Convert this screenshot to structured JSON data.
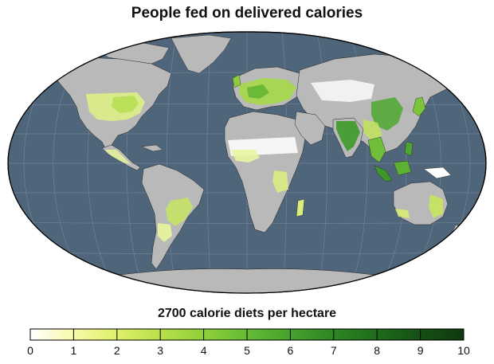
{
  "title": "People fed on delivered calories",
  "legend": {
    "title": "2700 calorie diets per hectare",
    "min": 0,
    "max": 10,
    "ticks": [
      "0",
      "1",
      "2",
      "3",
      "4",
      "5",
      "6",
      "7",
      "8",
      "9",
      "10"
    ],
    "gradient": [
      "#ffffff",
      "#f7f9a8",
      "#dff06a",
      "#b8e04a",
      "#8fd03b",
      "#66bb35",
      "#45a22c",
      "#2d8624",
      "#1f6b1c",
      "#154f14",
      "#0e3a0f"
    ]
  },
  "colors": {
    "ocean": "#4f657a",
    "land": "#b9b9b9",
    "graticule": "#6f8396",
    "borders": "#222222"
  }
}
